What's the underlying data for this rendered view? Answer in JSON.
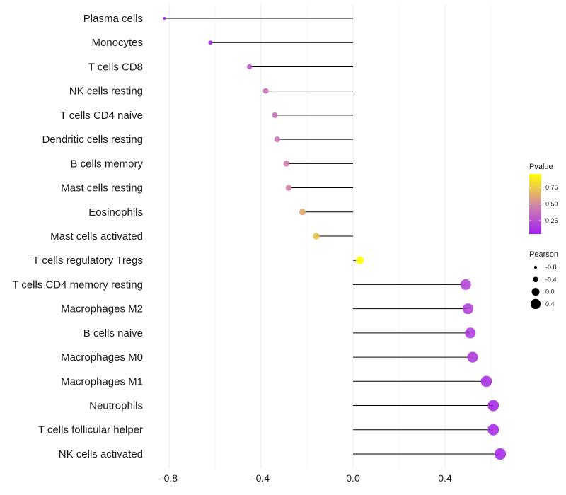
{
  "chart_data": {
    "type": "lollipop",
    "title": "",
    "xlabel": "",
    "ylabel": "",
    "xlim": [
      -0.88,
      0.67
    ],
    "x_ticks": [
      -0.8,
      -0.4,
      0.0,
      0.4
    ],
    "x_tick_labels": [
      "-0.8",
      "-0.4",
      "0.0",
      "0.4"
    ],
    "grid": true,
    "baseline": 0.0,
    "categories": [
      "Plasma cells",
      "Monocytes",
      "T cells CD8",
      "NK cells resting",
      "T cells CD4 naive",
      "Dendritic cells resting",
      "B cells memory",
      "Mast cells resting",
      "Eosinophils",
      "Mast cells activated",
      "T cells regulatory  Tregs",
      "T cells CD4 memory resting",
      "Macrophages M2",
      "B cells naive",
      "Macrophages M0",
      "Macrophages M1",
      "Neutrophils",
      "T cells follicular helper",
      "NK cells activated"
    ],
    "pearson": [
      -0.82,
      -0.62,
      -0.45,
      -0.38,
      -0.34,
      -0.33,
      -0.29,
      -0.28,
      -0.22,
      -0.16,
      0.03,
      0.49,
      0.5,
      0.51,
      0.52,
      0.58,
      0.61,
      0.61,
      0.64
    ],
    "pvalue": [
      0.06,
      0.08,
      0.28,
      0.38,
      0.4,
      0.42,
      0.46,
      0.48,
      0.62,
      0.72,
      0.95,
      0.22,
      0.2,
      0.18,
      0.17,
      0.13,
      0.11,
      0.11,
      0.1
    ],
    "legend_pvalue": {
      "title": "Pvalue",
      "ticks": [
        "0.25",
        "0.50",
        "0.75"
      ],
      "tick_values": [
        0.25,
        0.5,
        0.75
      ],
      "range": [
        0.05,
        0.95
      ],
      "color_low": "#a020f0",
      "color_mid": "#d080b0",
      "color_high": "#ffff00"
    },
    "legend_pearson": {
      "title": "Pearson",
      "labels": [
        "-0.8",
        "-0.4",
        "0.0",
        "0.4"
      ],
      "values": [
        -0.8,
        -0.4,
        0.0,
        0.4
      ]
    }
  }
}
